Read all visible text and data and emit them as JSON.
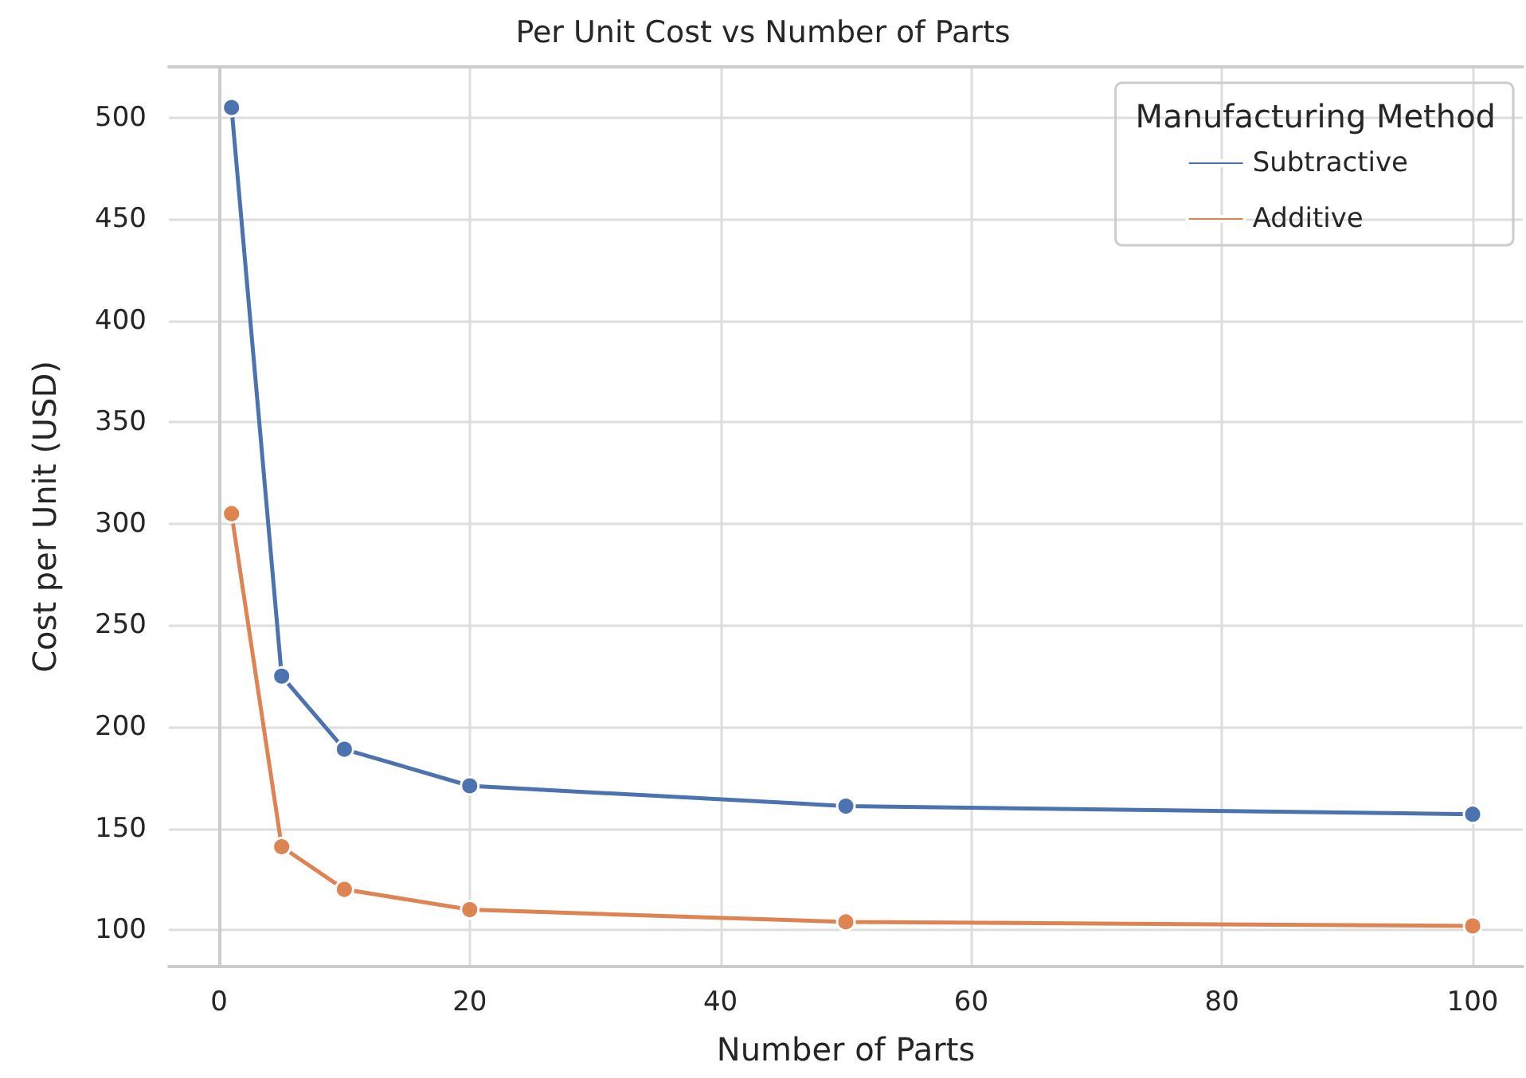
{
  "chart_data": {
    "type": "line",
    "title": "Per Unit Cost vs Number of Parts",
    "xlabel": "Number of Parts",
    "ylabel": "Cost per Unit (USD)",
    "legend_title": "Manufacturing Method",
    "x": [
      1,
      5,
      10,
      20,
      50,
      100
    ],
    "series": [
      {
        "name": "Subtractive",
        "color": "#4c72b0",
        "values": [
          505,
          225,
          189,
          171,
          161,
          157
        ]
      },
      {
        "name": "Additive",
        "color": "#dd8452",
        "values": [
          305,
          141,
          120,
          110,
          104,
          102
        ]
      }
    ],
    "xlim": [
      -4,
      104
    ],
    "xticks": [
      0,
      20,
      40,
      60,
      80,
      100
    ],
    "ylim": [
      82,
      525
    ],
    "yticks": [
      100,
      150,
      200,
      250,
      300,
      350,
      400,
      450,
      500
    ],
    "grid": true,
    "legend": "top right",
    "marker": "circle",
    "line_style": "solid"
  }
}
